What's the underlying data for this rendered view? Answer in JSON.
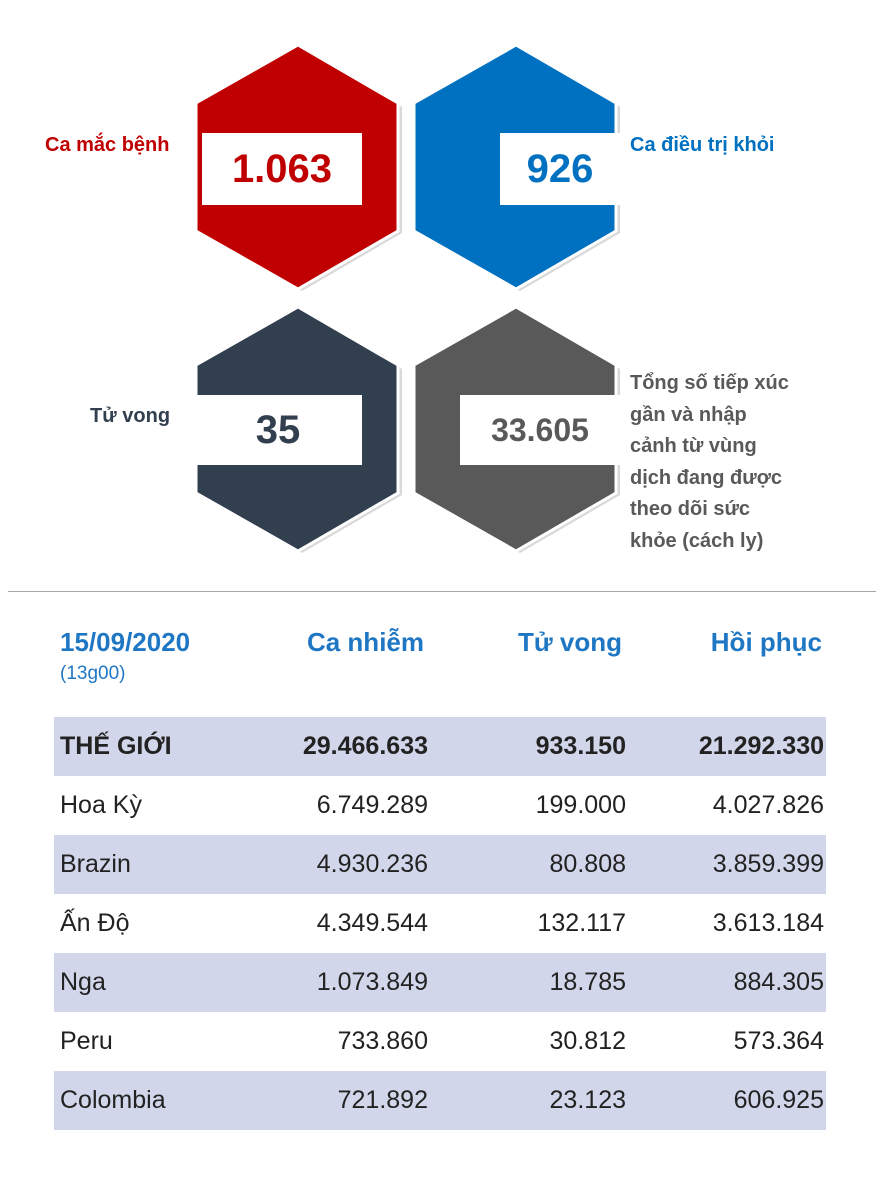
{
  "stats": {
    "cases": {
      "label": "Ca mắc bệnh",
      "value": "1.063",
      "color": "#c00000"
    },
    "recovered": {
      "label": "Ca điều trị khỏi",
      "value": "926",
      "color": "#0070c0"
    },
    "deaths": {
      "label": "Tử vong",
      "value": "35",
      "color": "#323f4f"
    },
    "monitored": {
      "label_lines": [
        "Tổng số tiếp xúc",
        "gần và nhập",
        "cảnh từ vùng",
        "dịch đang được",
        "theo dõi sức",
        "khỏe (cách ly)"
      ],
      "value": "33.605",
      "color": "#595959"
    }
  },
  "table": {
    "date": "15/09/2020",
    "time": "(13g00)",
    "headers": [
      "Ca nhiễm",
      "Tử vong",
      "Hồi phục"
    ],
    "rows": [
      {
        "name": "THẾ GIỚI",
        "cases": "29.466.633",
        "deaths": "933.150",
        "recovered": "21.292.330"
      },
      {
        "name": "Hoa Kỳ",
        "cases": "6.749.289",
        "deaths": "199.000",
        "recovered": "4.027.826"
      },
      {
        "name": "Brazin",
        "cases": "4.930.236",
        "deaths": "80.808",
        "recovered": "3.859.399"
      },
      {
        "name": "Ấn Độ",
        "cases": "4.349.544",
        "deaths": "132.117",
        "recovered": "3.613.184"
      },
      {
        "name": "Nga",
        "cases": "1.073.849",
        "deaths": "18.785",
        "recovered": "884.305"
      },
      {
        "name": "Peru",
        "cases": "733.860",
        "deaths": "30.812",
        "recovered": "573.364"
      },
      {
        "name": "Colombia",
        "cases": "721.892",
        "deaths": "23.123",
        "recovered": "606.925"
      }
    ]
  },
  "colors": {
    "header_blue": "#1f77c4",
    "row_shade": "#d2d6ea",
    "divider": "#a6a6a6"
  }
}
